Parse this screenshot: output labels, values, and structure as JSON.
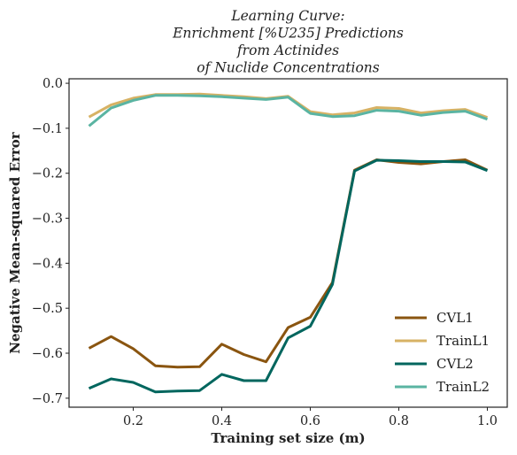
{
  "chart_data": {
    "type": "line",
    "title_lines": [
      "Learning Curve:",
      "Enrichment [%U235] Predictions",
      "from Actinides",
      "of Nuclide Concentrations"
    ],
    "xlabel": "Training set size (m)",
    "ylabel": "Negative Mean-squared Error",
    "xlim": [
      0.055,
      1.045
    ],
    "ylim": [
      -0.72,
      0.01
    ],
    "xticks": [
      0.2,
      0.4,
      0.6,
      0.8,
      1.0
    ],
    "xtick_labels": [
      "0.2",
      "0.4",
      "0.6",
      "0.8",
      "1.0"
    ],
    "yticks": [
      0.0,
      -0.1,
      -0.2,
      -0.3,
      -0.4,
      -0.5,
      -0.6,
      -0.7
    ],
    "ytick_labels": [
      "0.0",
      "−0.1",
      "−0.2",
      "−0.3",
      "−0.4",
      "−0.5",
      "−0.6",
      "−0.7"
    ],
    "grid": false,
    "legend_position": "lower-right",
    "x": [
      0.1,
      0.15,
      0.2,
      0.25,
      0.3,
      0.35,
      0.4,
      0.45,
      0.5,
      0.55,
      0.6,
      0.65,
      0.7,
      0.75,
      0.8,
      0.85,
      0.9,
      0.95,
      1.0
    ],
    "series": [
      {
        "name": "CVL1",
        "color": "#8a5510",
        "values": [
          -0.589,
          -0.563,
          -0.59,
          -0.628,
          -0.631,
          -0.63,
          -0.58,
          -0.603,
          -0.619,
          -0.543,
          -0.52,
          -0.443,
          -0.193,
          -0.17,
          -0.176,
          -0.179,
          -0.174,
          -0.17,
          -0.193
        ]
      },
      {
        "name": "TrainL1",
        "color": "#d7b264",
        "values": [
          -0.075,
          -0.048,
          -0.033,
          -0.025,
          -0.025,
          -0.024,
          -0.027,
          -0.03,
          -0.034,
          -0.029,
          -0.063,
          -0.07,
          -0.066,
          -0.054,
          -0.056,
          -0.066,
          -0.061,
          -0.058,
          -0.076
        ]
      },
      {
        "name": "CVL2",
        "color": "#00665e",
        "values": [
          -0.678,
          -0.657,
          -0.665,
          -0.686,
          -0.684,
          -0.683,
          -0.647,
          -0.661,
          -0.661,
          -0.566,
          -0.54,
          -0.447,
          -0.195,
          -0.171,
          -0.172,
          -0.174,
          -0.174,
          -0.175,
          -0.194
        ]
      },
      {
        "name": "TrainL2",
        "color": "#5ab4a2",
        "values": [
          -0.095,
          -0.055,
          -0.038,
          -0.027,
          -0.027,
          -0.028,
          -0.03,
          -0.033,
          -0.036,
          -0.031,
          -0.067,
          -0.074,
          -0.072,
          -0.06,
          -0.062,
          -0.071,
          -0.065,
          -0.062,
          -0.08
        ]
      }
    ]
  }
}
